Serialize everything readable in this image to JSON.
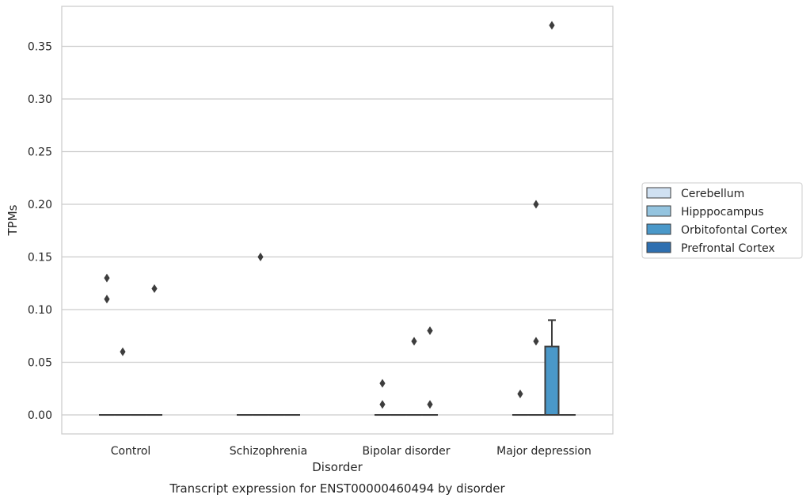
{
  "chart_data": {
    "type": "box",
    "title": "Transcript expression for ENST00000460494 by disorder",
    "xlabel": "Disorder",
    "ylabel": "TPMs",
    "categories": [
      "Control",
      "Schizophrenia",
      "Bipolar disorder",
      "Major depression"
    ],
    "ylim": [
      -0.018,
      0.388
    ],
    "yticks": [
      0.0,
      0.05,
      0.1,
      0.15,
      0.2,
      0.25,
      0.3,
      0.35
    ],
    "ytick_labels": [
      "0.00",
      "0.05",
      "0.10",
      "0.15",
      "0.20",
      "0.25",
      "0.30",
      "0.35"
    ],
    "grid": true,
    "legend_position": "right",
    "series": [
      {
        "name": "Cerebellum",
        "color": "#d0e1f2",
        "boxes": [
          {
            "q1": 0,
            "median": 0,
            "q3": 0,
            "whisker_low": 0,
            "whisker_high": 0,
            "outliers": [
              0.13,
              0.11
            ]
          },
          {
            "q1": 0,
            "median": 0,
            "q3": 0,
            "whisker_low": 0,
            "whisker_high": 0,
            "outliers": []
          },
          {
            "q1": 0,
            "median": 0,
            "q3": 0,
            "whisker_low": 0,
            "whisker_high": 0,
            "outliers": [
              0.03,
              0.01
            ]
          },
          {
            "q1": 0,
            "median": 0,
            "q3": 0,
            "whisker_low": 0,
            "whisker_high": 0,
            "outliers": [
              0.02
            ]
          }
        ]
      },
      {
        "name": "Hipppocampus",
        "color": "#94c4df",
        "boxes": [
          {
            "q1": 0,
            "median": 0,
            "q3": 0,
            "whisker_low": 0,
            "whisker_high": 0,
            "outliers": [
              0.06
            ]
          },
          {
            "q1": 0,
            "median": 0,
            "q3": 0,
            "whisker_low": 0,
            "whisker_high": 0,
            "outliers": [
              0.15
            ]
          },
          {
            "q1": 0,
            "median": 0,
            "q3": 0,
            "whisker_low": 0,
            "whisker_high": 0,
            "outliers": []
          },
          {
            "q1": 0,
            "median": 0,
            "q3": 0,
            "whisker_low": 0,
            "whisker_high": 0,
            "outliers": [
              0.2,
              0.07
            ]
          }
        ]
      },
      {
        "name": "Orbitofontal Cortex",
        "color": "#4a98c9",
        "boxes": [
          {
            "q1": 0,
            "median": 0,
            "q3": 0,
            "whisker_low": 0,
            "whisker_high": 0,
            "outliers": []
          },
          {
            "q1": 0,
            "median": 0,
            "q3": 0,
            "whisker_low": 0,
            "whisker_high": 0,
            "outliers": []
          },
          {
            "q1": 0,
            "median": 0,
            "q3": 0,
            "whisker_low": 0,
            "whisker_high": 0,
            "outliers": [
              0.07
            ]
          },
          {
            "q1": 0,
            "median": 0,
            "q3": 0.065,
            "whisker_low": 0,
            "whisker_high": 0.09,
            "outliers": [
              0.37
            ]
          }
        ]
      },
      {
        "name": "Prefrontal Cortex",
        "color": "#2e6fb0",
        "boxes": [
          {
            "q1": 0,
            "median": 0,
            "q3": 0,
            "whisker_low": 0,
            "whisker_high": 0,
            "outliers": [
              0.12
            ]
          },
          {
            "q1": 0,
            "median": 0,
            "q3": 0,
            "whisker_low": 0,
            "whisker_high": 0,
            "outliers": []
          },
          {
            "q1": 0,
            "median": 0,
            "q3": 0,
            "whisker_low": 0,
            "whisker_high": 0,
            "outliers": [
              0.08,
              0.01
            ]
          },
          {
            "q1": 0,
            "median": 0,
            "q3": 0,
            "whisker_low": 0,
            "whisker_high": 0,
            "outliers": []
          }
        ]
      }
    ]
  }
}
